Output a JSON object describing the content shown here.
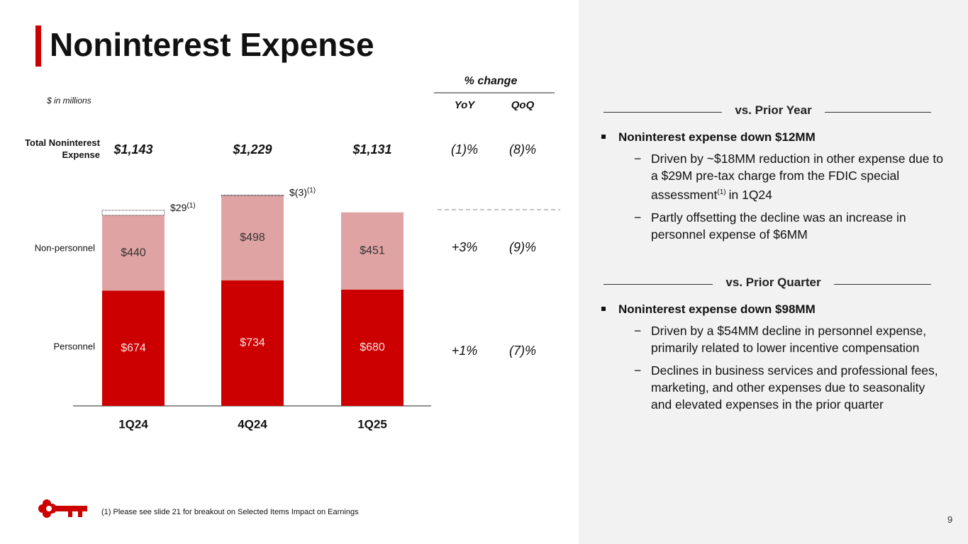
{
  "chart_data": {
    "type": "stacked-bar",
    "title": "Noninterest Expense",
    "subtitle": "$ in millions",
    "categories": [
      "1Q24",
      "4Q24",
      "1Q25"
    ],
    "series": [
      {
        "name": "Personnel",
        "color": "#cc0000",
        "values": [
          674,
          734,
          680
        ],
        "value_labels": [
          "$674",
          "$734",
          "$680"
        ]
      },
      {
        "name": "Non-personnel",
        "color": "#e0a3a3",
        "values": [
          440,
          498,
          451
        ],
        "value_labels": [
          "$440",
          "$498",
          "$451"
        ]
      },
      {
        "color": "#ffffff",
        "values": [
          29,
          -3,
          null
        ],
        "value_labels": [
          "$29",
          "$(3)",
          null
        ],
        "note": "(1)"
      }
    ],
    "totals": {
      "label": "Total Noninterest Expense",
      "values": [
        1143,
        1229,
        1131
      ],
      "value_labels": [
        "$1,143",
        "$1,229",
        "$1,131"
      ]
    },
    "ylim": [
      0,
      1300
    ]
  },
  "pct_change": {
    "title": "% change",
    "columns": [
      "YoY",
      "QoQ"
    ],
    "rows": [
      [
        "(1)%",
        "(8)%"
      ],
      [
        "+3%",
        "(9)%"
      ],
      [
        "+1%",
        "(7)%"
      ]
    ]
  },
  "panel": {
    "sections": [
      {
        "heading": "vs. Prior Year",
        "bullet": "Noninterest expense down $12MM",
        "subitems": [
          {
            "text": "Driven by ~$18MM reduction in other expense due to a $29M pre-tax charge from the FDIC special assessment",
            "note": "(1)",
            "text_after": "in 1Q24"
          },
          {
            "text": "Partly offsetting the decline was an increase in personnel expense of $6MM"
          }
        ]
      },
      {
        "heading": "vs. Prior Quarter",
        "bullet": "Noninterest expense down $98MM",
        "subitems": [
          {
            "text": "Driven by a $54MM decline in personnel expense, primarily related to lower incentive compensation"
          },
          {
            "text": "Declines in business services and professional fees, marketing, and other expenses due to seasonality and elevated expenses in the prior quarter"
          }
        ]
      }
    ]
  },
  "footnote": "(1) Please see slide 21 for breakout on Selected Items Impact on Earnings",
  "page_number": "9"
}
